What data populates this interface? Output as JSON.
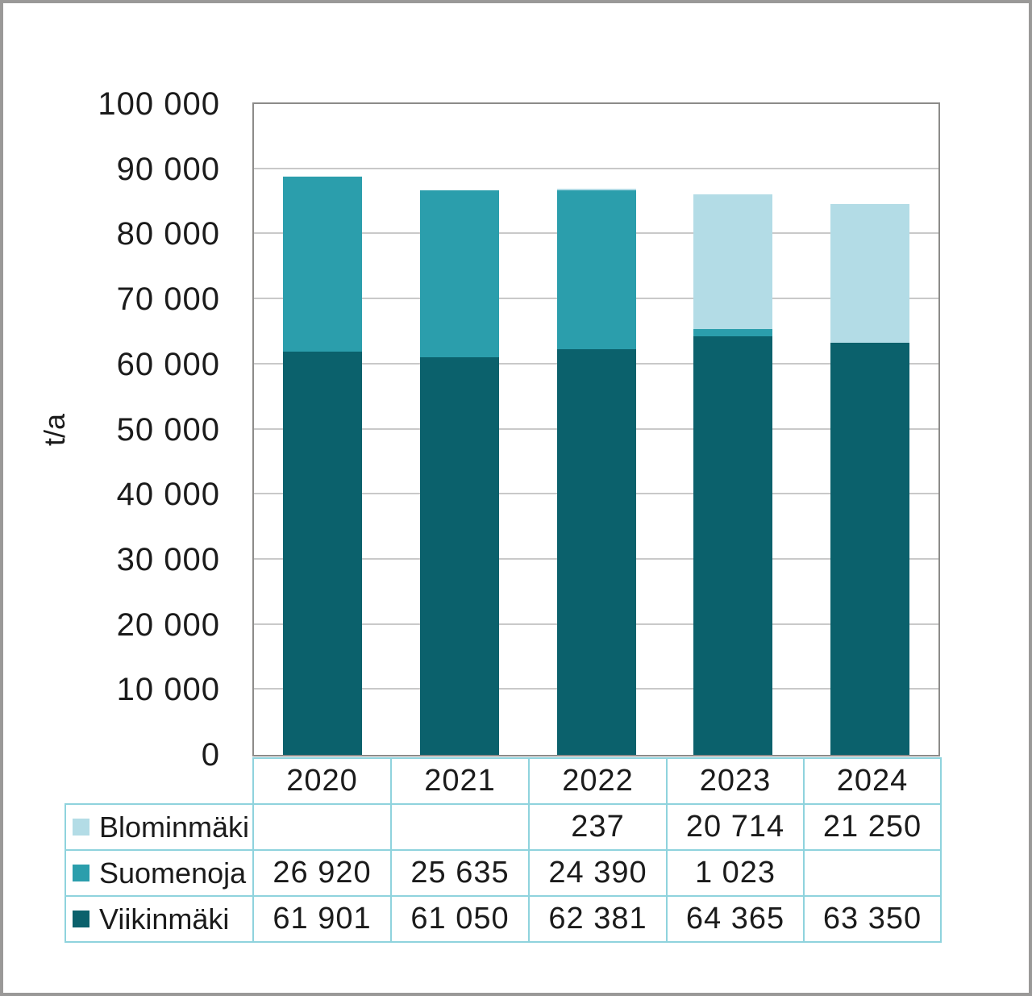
{
  "figure": {
    "ylabel": "t/a",
    "background_color": "#ffffff",
    "frame_color": "#9a9998",
    "plot_border_color": "#8c8b89",
    "gridline_color": "#c9c9c9",
    "table_border_color": "#8fd3dd",
    "text_color": "#1b1b1b"
  },
  "chart_data": {
    "type": "bar",
    "stacked": true,
    "title": "",
    "xlabel": "",
    "ylabel": "t/a",
    "ylim": [
      0,
      100000
    ],
    "ytick_step": 10000,
    "ytick_labels": [
      "0",
      "10 000",
      "20 000",
      "30 000",
      "40 000",
      "50 000",
      "60 000",
      "70 000",
      "80 000",
      "90 000",
      "100 000"
    ],
    "grid": true,
    "legend_position": "table-left",
    "categories": [
      "2020",
      "2021",
      "2022",
      "2023",
      "2024"
    ],
    "series": [
      {
        "name": "Blominmäki",
        "color": "#b3dce6",
        "values": [
          null,
          null,
          237,
          20714,
          21250
        ],
        "display": [
          "",
          "",
          "237",
          "20 714",
          "21 250"
        ]
      },
      {
        "name": "Suomenoja",
        "color": "#2b9eac",
        "values": [
          26920,
          25635,
          24390,
          1023,
          null
        ],
        "display": [
          "26 920",
          "25 635",
          "24 390",
          "1 023",
          ""
        ]
      },
      {
        "name": "Viikinmäki",
        "color": "#0b616c",
        "values": [
          61901,
          61050,
          62381,
          64365,
          63350
        ],
        "display": [
          "61 901",
          "61 050",
          "62 381",
          "64 365",
          "63 350"
        ]
      }
    ],
    "stack_order_bottom_to_top": [
      "Viikinmäki",
      "Suomenoja",
      "Blominmäki"
    ],
    "totals": [
      88821,
      86685,
      87008,
      86102,
      84600
    ]
  }
}
